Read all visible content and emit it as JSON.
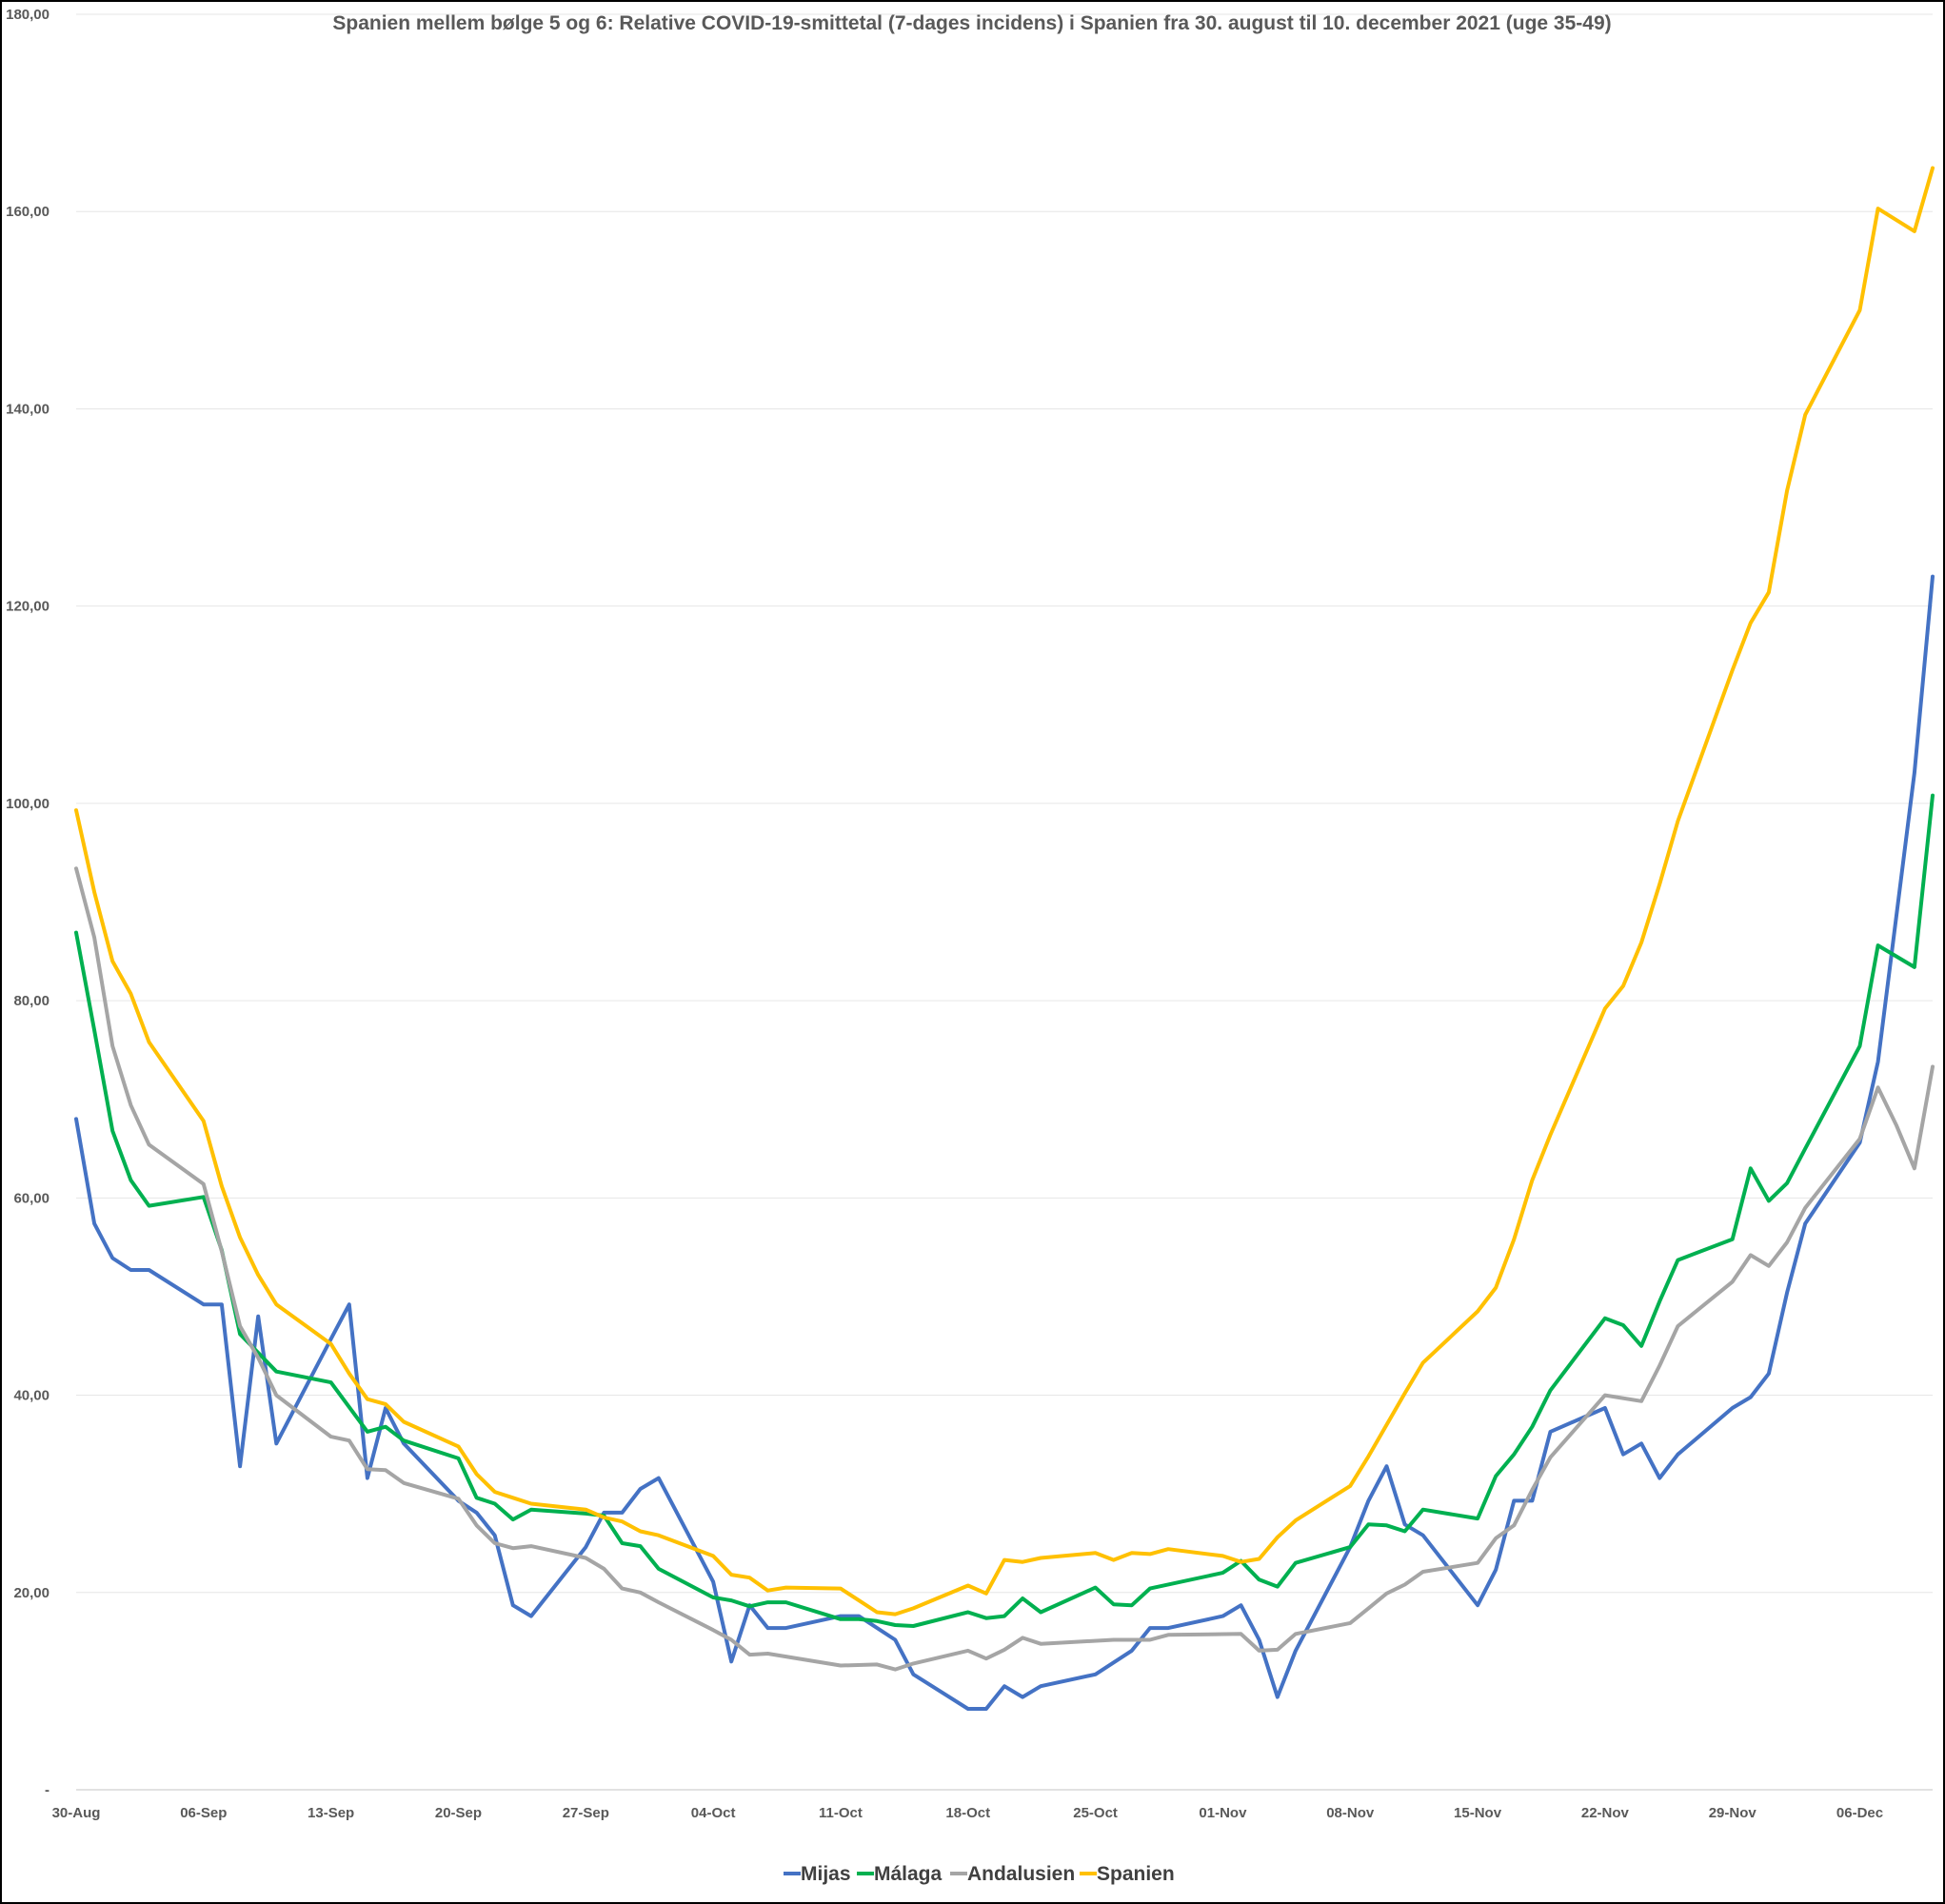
{
  "chart_data": {
    "type": "line",
    "title": "Spanien mellem bølge 5 og 6: Relative COVID-19-smittetal (7-dages incidens) i Spanien fra 30. august til 10. december 2021 (uge 35-49)",
    "xlabel": "",
    "ylabel": "",
    "ylim": [
      0,
      180
    ],
    "y_ticks": [
      "-",
      "20,00",
      "40,00",
      "60,00",
      "80,00",
      "100,00",
      "120,00",
      "140,00",
      "160,00",
      "180,00"
    ],
    "x_tick_labels": [
      "30-Aug",
      "06-Sep",
      "13-Sep",
      "20-Sep",
      "27-Sep",
      "04-Oct",
      "11-Oct",
      "18-Oct",
      "25-Oct",
      "01-Nov",
      "08-Nov",
      "15-Nov",
      "22-Nov",
      "29-Nov",
      "06-Dec"
    ],
    "x_range_days": [
      0,
      102
    ],
    "grid": "horizontal",
    "legend_position": "bottom",
    "series": [
      {
        "name": "Mijas",
        "color": "#4472C4",
        "points": [
          [
            0,
            68
          ],
          [
            1,
            57.4
          ],
          [
            2,
            53.9
          ],
          [
            3,
            52.7
          ],
          [
            4,
            52.7
          ],
          [
            7,
            49.2
          ],
          [
            8,
            49.2
          ],
          [
            9,
            32.8
          ],
          [
            10,
            48
          ],
          [
            11,
            35.1
          ],
          [
            14,
            45.7
          ],
          [
            15,
            49.2
          ],
          [
            16,
            31.6
          ],
          [
            17,
            38.7
          ],
          [
            18,
            35.1
          ],
          [
            21,
            29.3
          ],
          [
            22,
            28.1
          ],
          [
            23,
            25.8
          ],
          [
            24,
            18.7
          ],
          [
            25,
            17.6
          ],
          [
            28,
            24.6
          ],
          [
            29,
            28.1
          ],
          [
            30,
            28.1
          ],
          [
            31,
            30.5
          ],
          [
            32,
            31.6
          ],
          [
            35,
            21.1
          ],
          [
            36,
            13
          ],
          [
            37,
            18.7
          ],
          [
            38,
            16.4
          ],
          [
            39,
            16.4
          ],
          [
            42,
            17.6
          ],
          [
            43,
            17.6
          ],
          [
            45,
            15.2
          ],
          [
            46,
            11.7
          ],
          [
            49,
            8.2
          ],
          [
            50,
            8.2
          ],
          [
            51,
            10.5
          ],
          [
            52,
            9.4
          ],
          [
            53,
            10.5
          ],
          [
            56,
            11.7
          ],
          [
            58,
            14.1
          ],
          [
            59,
            16.4
          ],
          [
            60,
            16.4
          ],
          [
            63,
            17.6
          ],
          [
            64,
            18.7
          ],
          [
            65,
            15.2
          ],
          [
            66,
            9.4
          ],
          [
            67,
            14.1
          ],
          [
            70,
            24.6
          ],
          [
            71,
            29.3
          ],
          [
            72,
            32.8
          ],
          [
            73,
            26.9
          ],
          [
            74,
            25.8
          ],
          [
            77,
            18.7
          ],
          [
            78,
            22.3
          ],
          [
            79,
            29.3
          ],
          [
            80,
            29.3
          ],
          [
            81,
            36.3
          ],
          [
            84,
            38.7
          ],
          [
            85,
            34
          ],
          [
            86,
            35.1
          ],
          [
            87,
            31.6
          ],
          [
            88,
            34
          ],
          [
            91,
            38.7
          ],
          [
            92,
            39.8
          ],
          [
            93,
            42.2
          ],
          [
            94,
            50.4
          ],
          [
            95,
            57.4
          ],
          [
            98,
            65.6
          ],
          [
            99,
            73.8
          ],
          [
            101,
            103.1
          ],
          [
            102,
            123
          ]
        ]
      },
      {
        "name": "Málaga",
        "color": "#00B050",
        "points": [
          [
            0,
            86.9
          ],
          [
            1,
            77
          ],
          [
            2,
            66.8
          ],
          [
            3,
            61.8
          ],
          [
            4,
            59.2
          ],
          [
            7,
            60.1
          ],
          [
            8,
            54.7
          ],
          [
            9,
            46.2
          ],
          [
            11,
            42.4
          ],
          [
            14,
            41.3
          ],
          [
            16,
            36.3
          ],
          [
            17,
            36.8
          ],
          [
            18,
            35.4
          ],
          [
            21,
            33.6
          ],
          [
            22,
            29.6
          ],
          [
            23,
            29
          ],
          [
            24,
            27.4
          ],
          [
            25,
            28.4
          ],
          [
            28,
            28
          ],
          [
            29,
            27.8
          ],
          [
            30,
            25
          ],
          [
            31,
            24.7
          ],
          [
            32,
            22.4
          ],
          [
            35,
            19.5
          ],
          [
            36,
            19.2
          ],
          [
            37,
            18.6
          ],
          [
            38,
            19
          ],
          [
            39,
            19
          ],
          [
            42,
            17.3
          ],
          [
            43,
            17.3
          ],
          [
            44,
            17.1
          ],
          [
            45,
            16.7
          ],
          [
            46,
            16.6
          ],
          [
            49,
            18
          ],
          [
            50,
            17.4
          ],
          [
            51,
            17.6
          ],
          [
            52,
            19.4
          ],
          [
            53,
            18
          ],
          [
            56,
            20.5
          ],
          [
            57,
            18.8
          ],
          [
            58,
            18.7
          ],
          [
            59,
            20.4
          ],
          [
            63,
            22
          ],
          [
            64,
            23.2
          ],
          [
            65,
            21.3
          ],
          [
            66,
            20.6
          ],
          [
            67,
            23
          ],
          [
            70,
            24.6
          ],
          [
            71,
            26.9
          ],
          [
            72,
            26.8
          ],
          [
            73,
            26.2
          ],
          [
            74,
            28.4
          ],
          [
            77,
            27.5
          ],
          [
            78,
            31.8
          ],
          [
            79,
            34
          ],
          [
            80,
            36.8
          ],
          [
            81,
            40.5
          ],
          [
            84,
            47.8
          ],
          [
            85,
            47.1
          ],
          [
            86,
            45
          ],
          [
            87,
            49.5
          ],
          [
            88,
            53.7
          ],
          [
            91,
            55.8
          ],
          [
            92,
            63
          ],
          [
            93,
            59.7
          ],
          [
            94,
            61.5
          ],
          [
            95,
            65
          ],
          [
            98,
            75.4
          ],
          [
            99,
            85.6
          ],
          [
            101,
            83.4
          ],
          [
            102,
            100.8
          ]
        ]
      },
      {
        "name": "Andalusien",
        "color": "#A5A5A5",
        "points": [
          [
            0,
            93.4
          ],
          [
            1,
            86.4
          ],
          [
            2,
            75.4
          ],
          [
            3,
            69.4
          ],
          [
            4,
            65.4
          ],
          [
            7,
            61.4
          ],
          [
            8,
            54.6
          ],
          [
            9,
            47
          ],
          [
            10,
            43.8
          ],
          [
            11,
            40
          ],
          [
            14,
            35.8
          ],
          [
            15,
            35.4
          ],
          [
            16,
            32.5
          ],
          [
            17,
            32.4
          ],
          [
            18,
            31.1
          ],
          [
            21,
            29.5
          ],
          [
            22,
            26.8
          ],
          [
            23,
            25
          ],
          [
            24,
            24.5
          ],
          [
            25,
            24.7
          ],
          [
            28,
            23.5
          ],
          [
            29,
            22.4
          ],
          [
            30,
            20.4
          ],
          [
            31,
            20
          ],
          [
            32,
            19
          ],
          [
            35,
            16.2
          ],
          [
            36,
            15.2
          ],
          [
            37,
            13.7
          ],
          [
            38,
            13.8
          ],
          [
            42,
            12.6
          ],
          [
            44,
            12.7
          ],
          [
            45,
            12.2
          ],
          [
            46,
            12.8
          ],
          [
            49,
            14.1
          ],
          [
            50,
            13.3
          ],
          [
            51,
            14.2
          ],
          [
            52,
            15.4
          ],
          [
            53,
            14.8
          ],
          [
            57,
            15.2
          ],
          [
            59,
            15.2
          ],
          [
            60,
            15.7
          ],
          [
            64,
            15.8
          ],
          [
            65,
            14.1
          ],
          [
            66,
            14.2
          ],
          [
            67,
            15.8
          ],
          [
            70,
            16.9
          ],
          [
            71,
            18.4
          ],
          [
            72,
            19.9
          ],
          [
            73,
            20.8
          ],
          [
            74,
            22.1
          ],
          [
            77,
            23
          ],
          [
            78,
            25.5
          ],
          [
            79,
            26.8
          ],
          [
            80,
            30.4
          ],
          [
            81,
            33.7
          ],
          [
            84,
            40
          ],
          [
            86,
            39.4
          ],
          [
            87,
            43
          ],
          [
            88,
            47
          ],
          [
            91,
            51.5
          ],
          [
            92,
            54.2
          ],
          [
            93,
            53.1
          ],
          [
            94,
            55.5
          ],
          [
            95,
            59
          ],
          [
            98,
            66
          ],
          [
            99,
            71.2
          ],
          [
            100,
            67.4
          ],
          [
            101,
            63
          ],
          [
            102,
            73.3
          ]
        ]
      },
      {
        "name": "Spanien",
        "color": "#FFC000",
        "points": [
          [
            0,
            99.3
          ],
          [
            1,
            91
          ],
          [
            2,
            84
          ],
          [
            3,
            80.7
          ],
          [
            4,
            75.8
          ],
          [
            7,
            67.8
          ],
          [
            8,
            61.2
          ],
          [
            9,
            56
          ],
          [
            10,
            52.2
          ],
          [
            11,
            49.2
          ],
          [
            14,
            45.2
          ],
          [
            15,
            42.2
          ],
          [
            16,
            39.6
          ],
          [
            17,
            39.1
          ],
          [
            18,
            37.3
          ],
          [
            21,
            34.8
          ],
          [
            22,
            32
          ],
          [
            23,
            30.2
          ],
          [
            24,
            29.6
          ],
          [
            25,
            29
          ],
          [
            28,
            28.4
          ],
          [
            29,
            27.6
          ],
          [
            30,
            27.2
          ],
          [
            31,
            26.2
          ],
          [
            32,
            25.8
          ],
          [
            35,
            23.7
          ],
          [
            36,
            21.8
          ],
          [
            37,
            21.5
          ],
          [
            38,
            20.2
          ],
          [
            39,
            20.5
          ],
          [
            42,
            20.4
          ],
          [
            43,
            19.2
          ],
          [
            44,
            18
          ],
          [
            45,
            17.8
          ],
          [
            46,
            18.4
          ],
          [
            49,
            20.7
          ],
          [
            50,
            19.9
          ],
          [
            51,
            23.3
          ],
          [
            52,
            23.1
          ],
          [
            53,
            23.5
          ],
          [
            56,
            24
          ],
          [
            57,
            23.3
          ],
          [
            58,
            24
          ],
          [
            59,
            23.9
          ],
          [
            60,
            24.4
          ],
          [
            63,
            23.7
          ],
          [
            64,
            23.1
          ],
          [
            65,
            23.4
          ],
          [
            66,
            25.6
          ],
          [
            67,
            27.3
          ],
          [
            70,
            30.8
          ],
          [
            71,
            33.8
          ],
          [
            72,
            37
          ],
          [
            73,
            40.2
          ],
          [
            74,
            43.3
          ],
          [
            77,
            48.5
          ],
          [
            78,
            50.9
          ],
          [
            79,
            55.8
          ],
          [
            80,
            61.8
          ],
          [
            81,
            66.4
          ],
          [
            84,
            79.2
          ],
          [
            85,
            81.5
          ],
          [
            86,
            85.9
          ],
          [
            87,
            91.8
          ],
          [
            88,
            98.2
          ],
          [
            91,
            113.5
          ],
          [
            92,
            118.3
          ],
          [
            93,
            121.4
          ],
          [
            94,
            131.7
          ],
          [
            95,
            139.4
          ],
          [
            98,
            150
          ],
          [
            99,
            160.3
          ],
          [
            101,
            158
          ],
          [
            102,
            164.4
          ]
        ]
      }
    ]
  }
}
